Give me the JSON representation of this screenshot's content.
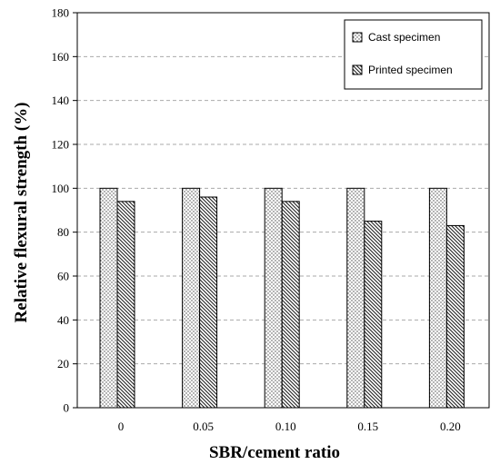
{
  "chart_data": {
    "type": "bar",
    "categories": [
      "0",
      "0.05",
      "0.10",
      "0.15",
      "0.20"
    ],
    "series": [
      {
        "name": "Cast specimen",
        "values": [
          100,
          100,
          100,
          100,
          100
        ],
        "pattern": "dots"
      },
      {
        "name": "Printed specimen",
        "values": [
          94,
          96,
          94,
          85,
          83
        ],
        "pattern": "diagonal-hatch"
      }
    ],
    "title": "",
    "xlabel": "SBR/cement ratio",
    "ylabel": "Relative flexural strength (%)",
    "ylim": [
      0,
      180
    ],
    "yticks": [
      0,
      20,
      40,
      60,
      80,
      100,
      120,
      140,
      160,
      180
    ],
    "grid": "horizontal-dashed",
    "legend_position": "top-right"
  }
}
